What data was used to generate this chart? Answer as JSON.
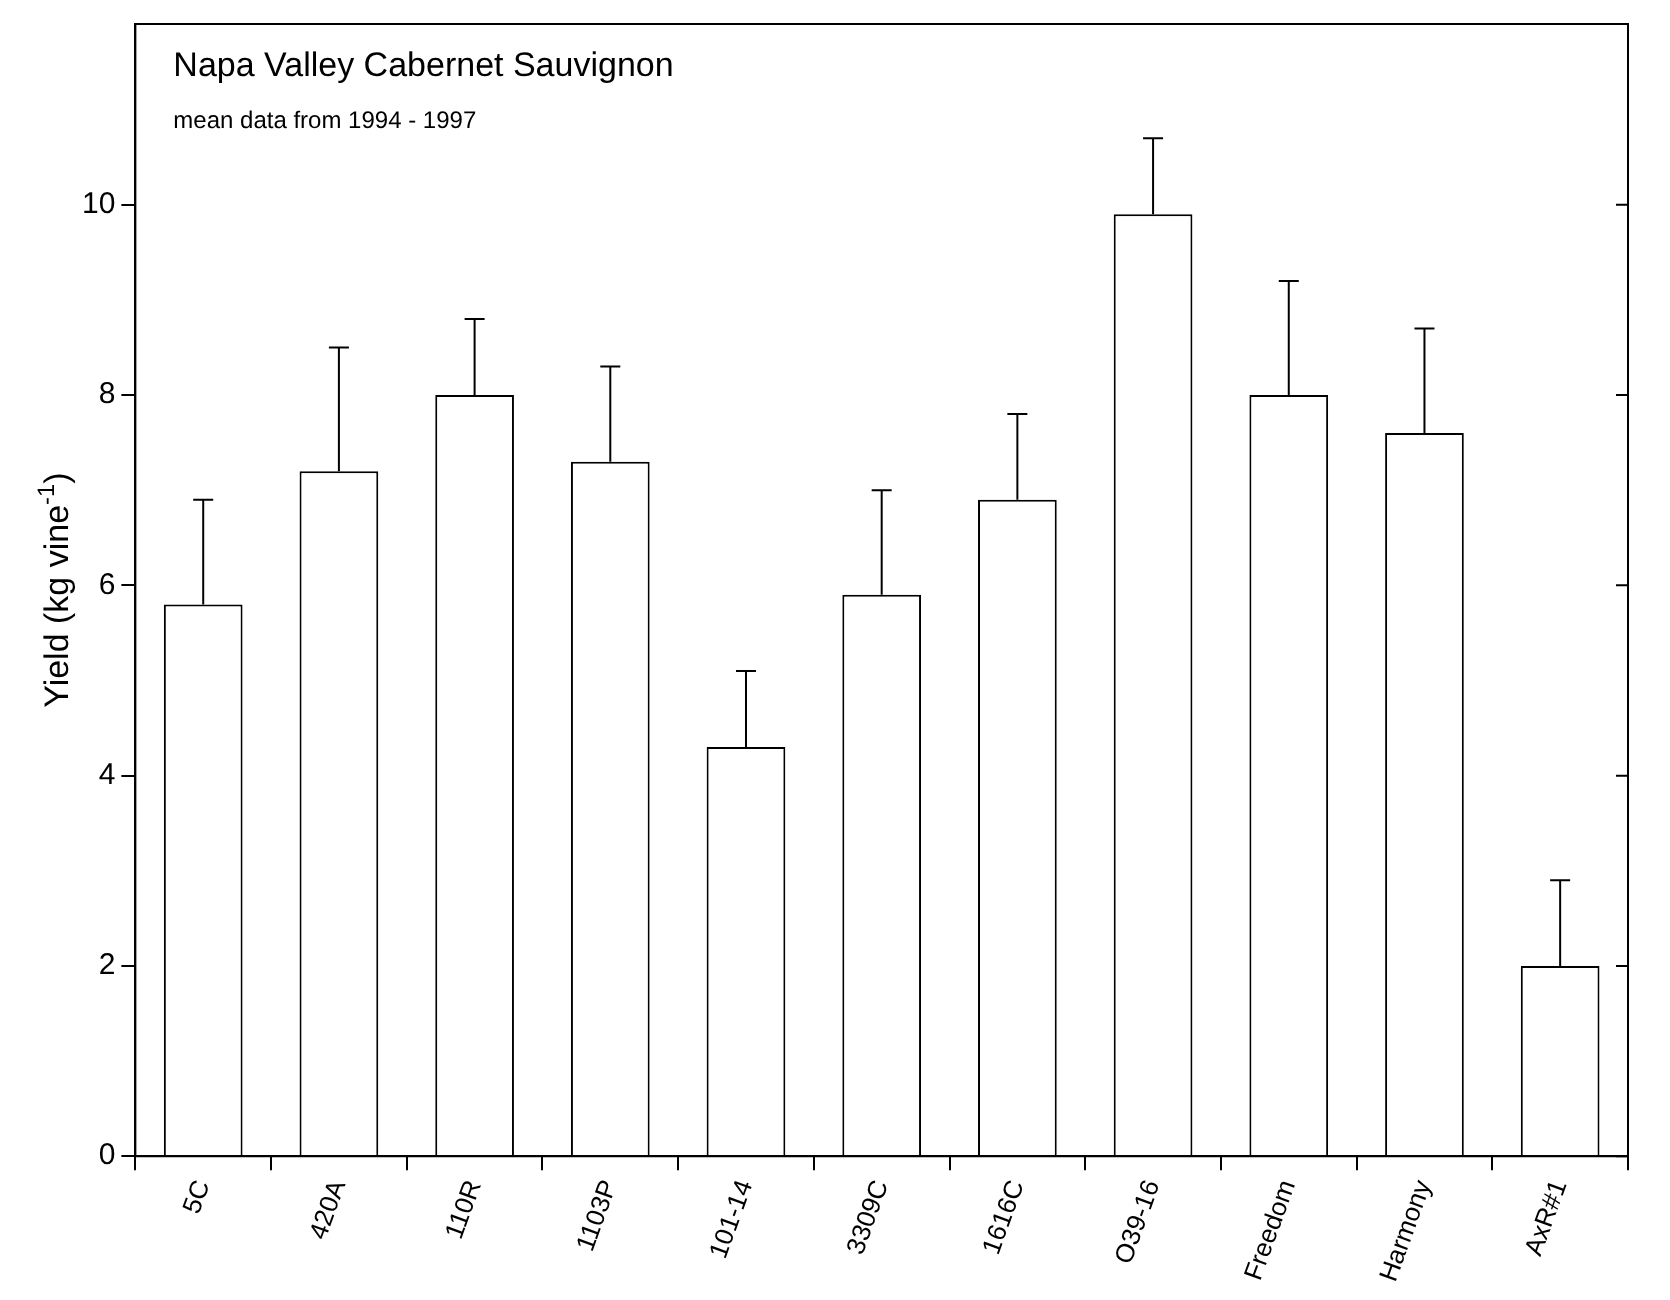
{
  "chart_data": {
    "type": "bar",
    "title": "Napa Valley Cabernet Sauvignon",
    "subtitle": "mean data from 1994 - 1997",
    "ylabel": "Yield (kg vine$^{-1}$)",
    "categories": [
      "5C",
      "420A",
      "110R",
      "1103P",
      "101-14",
      "3309C",
      "1616C",
      "O39-16",
      "Freedom",
      "Harmony",
      "AxR#1"
    ],
    "values": [
      5.8,
      7.2,
      8.0,
      7.3,
      4.3,
      5.9,
      6.9,
      9.9,
      8.0,
      7.6,
      2.0
    ],
    "errors": [
      [
        5.8,
        6.9
      ],
      [
        7.2,
        8.5
      ],
      [
        8.0,
        8.8
      ],
      [
        7.3,
        8.3
      ],
      [
        4.3,
        5.1
      ],
      [
        5.9,
        7.0
      ],
      [
        6.9,
        7.8
      ],
      [
        9.9,
        10.7
      ],
      [
        8.0,
        9.2
      ],
      [
        7.6,
        8.7
      ],
      [
        2.0,
        2.9
      ]
    ],
    "color": "#ffffff",
    "ylim": [
      0,
      11.9
    ],
    "yticks": [
      0,
      2,
      4,
      6,
      8,
      10
    ],
    "grid": false,
    "legend": false
  }
}
